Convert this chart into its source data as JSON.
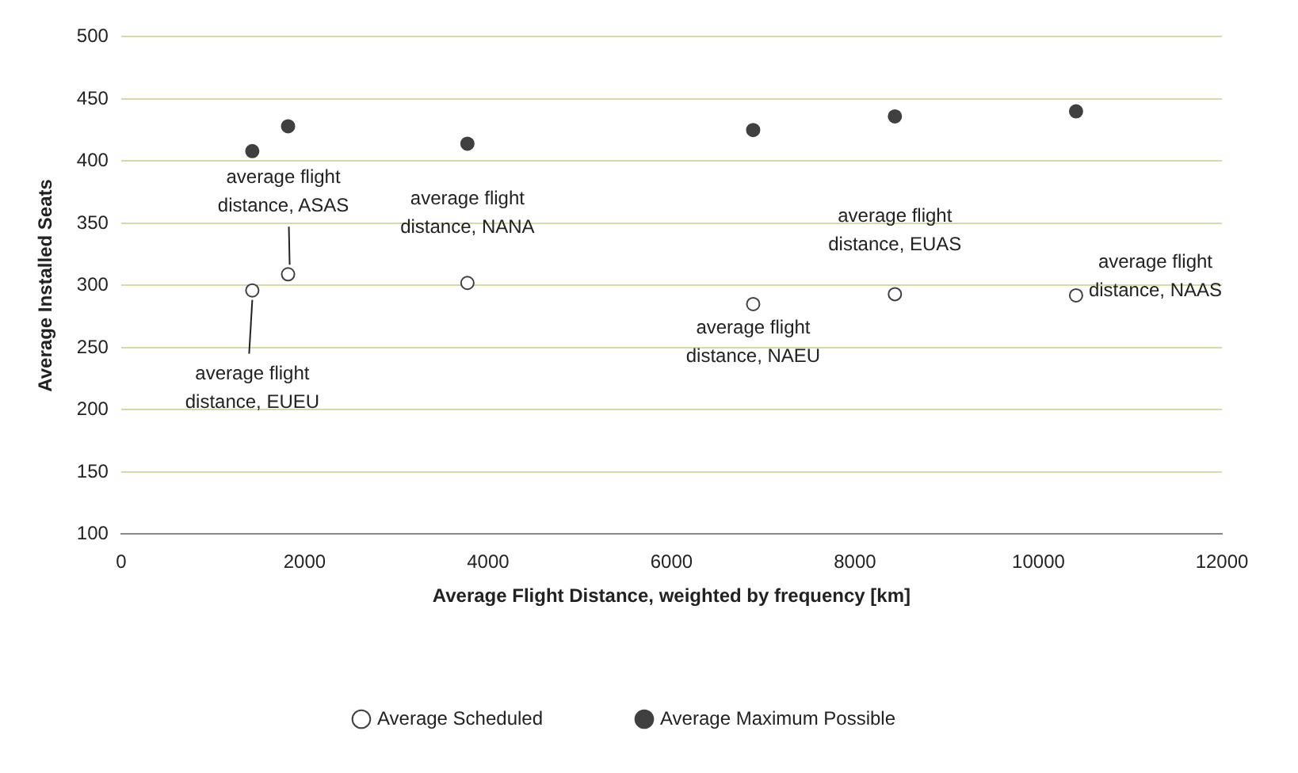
{
  "chart_data": {
    "type": "scatter",
    "xlabel": "Average Flight Distance, weighted by frequency [km]",
    "ylabel": "Average Installed Seats",
    "xlim": [
      0,
      12000
    ],
    "xticks": [
      0,
      2000,
      4000,
      6000,
      8000,
      10000,
      12000
    ],
    "ylim": [
      100,
      500
    ],
    "yticks": [
      100,
      150,
      200,
      250,
      300,
      350,
      400,
      450,
      500
    ],
    "grid": "y",
    "legend": "bottom",
    "marker": "circle",
    "series": [
      {
        "name": "Average Scheduled",
        "color": "#ffffff",
        "x": [
          1430,
          1820,
          3775,
          6890,
          8435,
          10410
        ],
        "values": [
          296,
          309,
          302,
          285,
          293,
          292
        ]
      },
      {
        "name": "Average Maximum Possible",
        "color": "#404040",
        "x": [
          1430,
          1820,
          3775,
          6890,
          8435,
          10410
        ],
        "values": [
          408,
          428,
          414,
          425,
          436,
          440
        ]
      }
    ],
    "annotations": [
      {
        "text": "average flight distance, EUEU",
        "x": 1430,
        "y": 296
      },
      {
        "text": "average flight distance, ASAS",
        "x": 1820,
        "y": 309
      },
      {
        "text": "average flight distance, NANA",
        "x": 3775,
        "y": 302
      },
      {
        "text": "average flight distance, NAEU",
        "x": 6890,
        "y": 285
      },
      {
        "text": "average flight distance, EUAS",
        "x": 8435,
        "y": 293
      },
      {
        "text": "average flight distance, NAAS",
        "x": 10410,
        "y": 292
      }
    ]
  }
}
